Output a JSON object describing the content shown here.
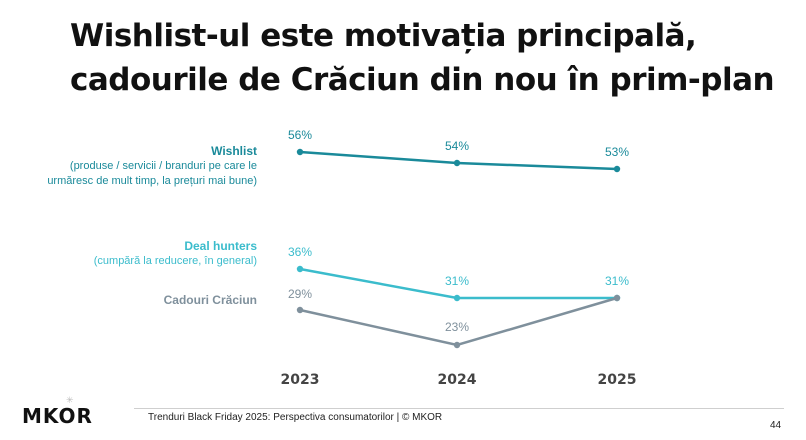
{
  "title_line1": "Wishlist-ul este motivația principală,",
  "title_line2": "cadourile de Crăciun din nou în prim-plan",
  "chart_data": {
    "type": "line",
    "x": [
      "2023",
      "2024",
      "2025"
    ],
    "ylim": [
      0,
      100
    ],
    "series": [
      {
        "name": "Wishlist",
        "description": "(produse / servicii / branduri pe care le urmăresc de mult timp, la prețuri mai bune)",
        "values": [
          56,
          54,
          53
        ],
        "labels": [
          "56%",
          "54%",
          "53%"
        ],
        "color": "#1a8a9a"
      },
      {
        "name": "Deal hunters",
        "description": "(cumpără la reducere, în general)",
        "values": [
          36,
          31,
          31
        ],
        "labels": [
          "36%",
          "31%",
          "31%"
        ],
        "color": "#3bbccc"
      },
      {
        "name": "Cadouri Crăciun",
        "description": "",
        "values": [
          29,
          23,
          31
        ],
        "labels": [
          "29%",
          "23%",
          ""
        ],
        "color": "#7f909c"
      }
    ]
  },
  "legend": {
    "wishlist_name": "Wishlist",
    "wishlist_desc_1": "(produse / servicii / branduri pe care le",
    "wishlist_desc_2": "urmăresc de mult timp, la prețuri mai bune)",
    "deal_name": "Deal hunters",
    "deal_desc": "(cumpără la reducere, în general)",
    "gifts_name": "Cadouri Crăciun"
  },
  "footer": {
    "logo": "MKOR",
    "text": "Trenduri Black Friday 2025: Perspectiva consumatorilor | © MKOR",
    "page": "44"
  }
}
